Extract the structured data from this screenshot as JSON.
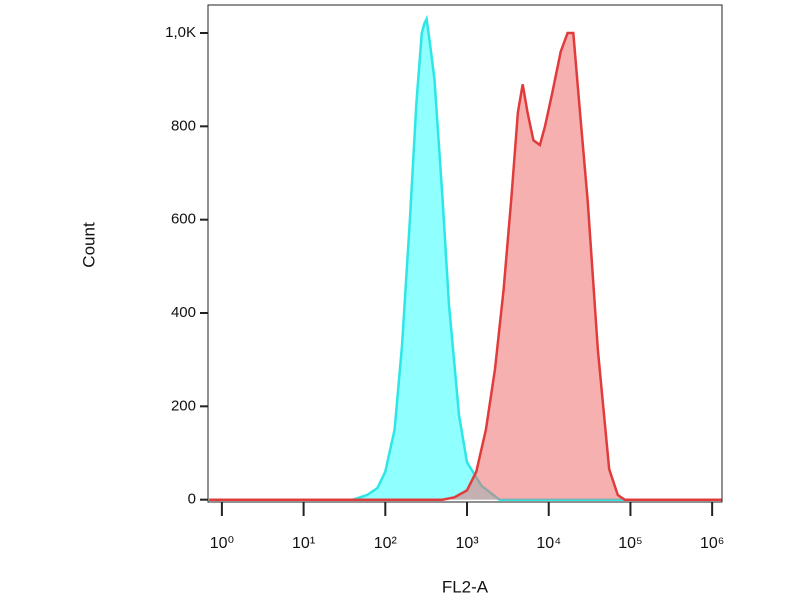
{
  "chart_data": {
    "type": "area",
    "xlabel": "FL2-A",
    "ylabel": "Count",
    "xscale": "log",
    "xlim": [
      0.676,
      1320000
    ],
    "ylim": [
      -5,
      1060
    ],
    "xticks": [
      {
        "value": 1,
        "label": "10⁰"
      },
      {
        "value": 10,
        "label": "10¹"
      },
      {
        "value": 100,
        "label": "10²"
      },
      {
        "value": 1000,
        "label": "10³"
      },
      {
        "value": 10000,
        "label": "10⁴"
      },
      {
        "value": 100000,
        "label": "10⁵"
      },
      {
        "value": 1000000,
        "label": "10⁶"
      }
    ],
    "yticks": [
      0,
      200,
      400,
      600,
      800,
      {
        "value": 1000,
        "label": "1,0K"
      }
    ],
    "series": [
      {
        "color": "#2ee6e6",
        "fill": "#33ffff",
        "x": [
          0.7,
          40,
          60,
          80,
          100,
          130,
          160,
          200,
          240,
          280,
          300,
          320,
          350,
          400,
          500,
          600,
          800,
          1000,
          1500,
          2500,
          1300000
        ],
        "values": [
          0,
          0,
          10,
          25,
          60,
          150,
          330,
          600,
          850,
          1000,
          1020,
          1030,
          980,
          900,
          650,
          420,
          180,
          80,
          30,
          0,
          0
        ]
      },
      {
        "color": "#e03c3c",
        "fill": "#f07070",
        "x": [
          0.7,
          500,
          700,
          1000,
          1300,
          1700,
          2200,
          2800,
          3500,
          4200,
          4800,
          5500,
          6500,
          7800,
          9000,
          11000,
          14000,
          17000,
          20000,
          24000,
          30000,
          40000,
          55000,
          70000,
          85000,
          1300000
        ],
        "values": [
          0,
          0,
          5,
          20,
          60,
          150,
          280,
          450,
          650,
          830,
          890,
          830,
          770,
          760,
          800,
          870,
          960,
          1000,
          1000,
          835,
          640,
          320,
          65,
          10,
          0,
          0
        ]
      }
    ]
  }
}
